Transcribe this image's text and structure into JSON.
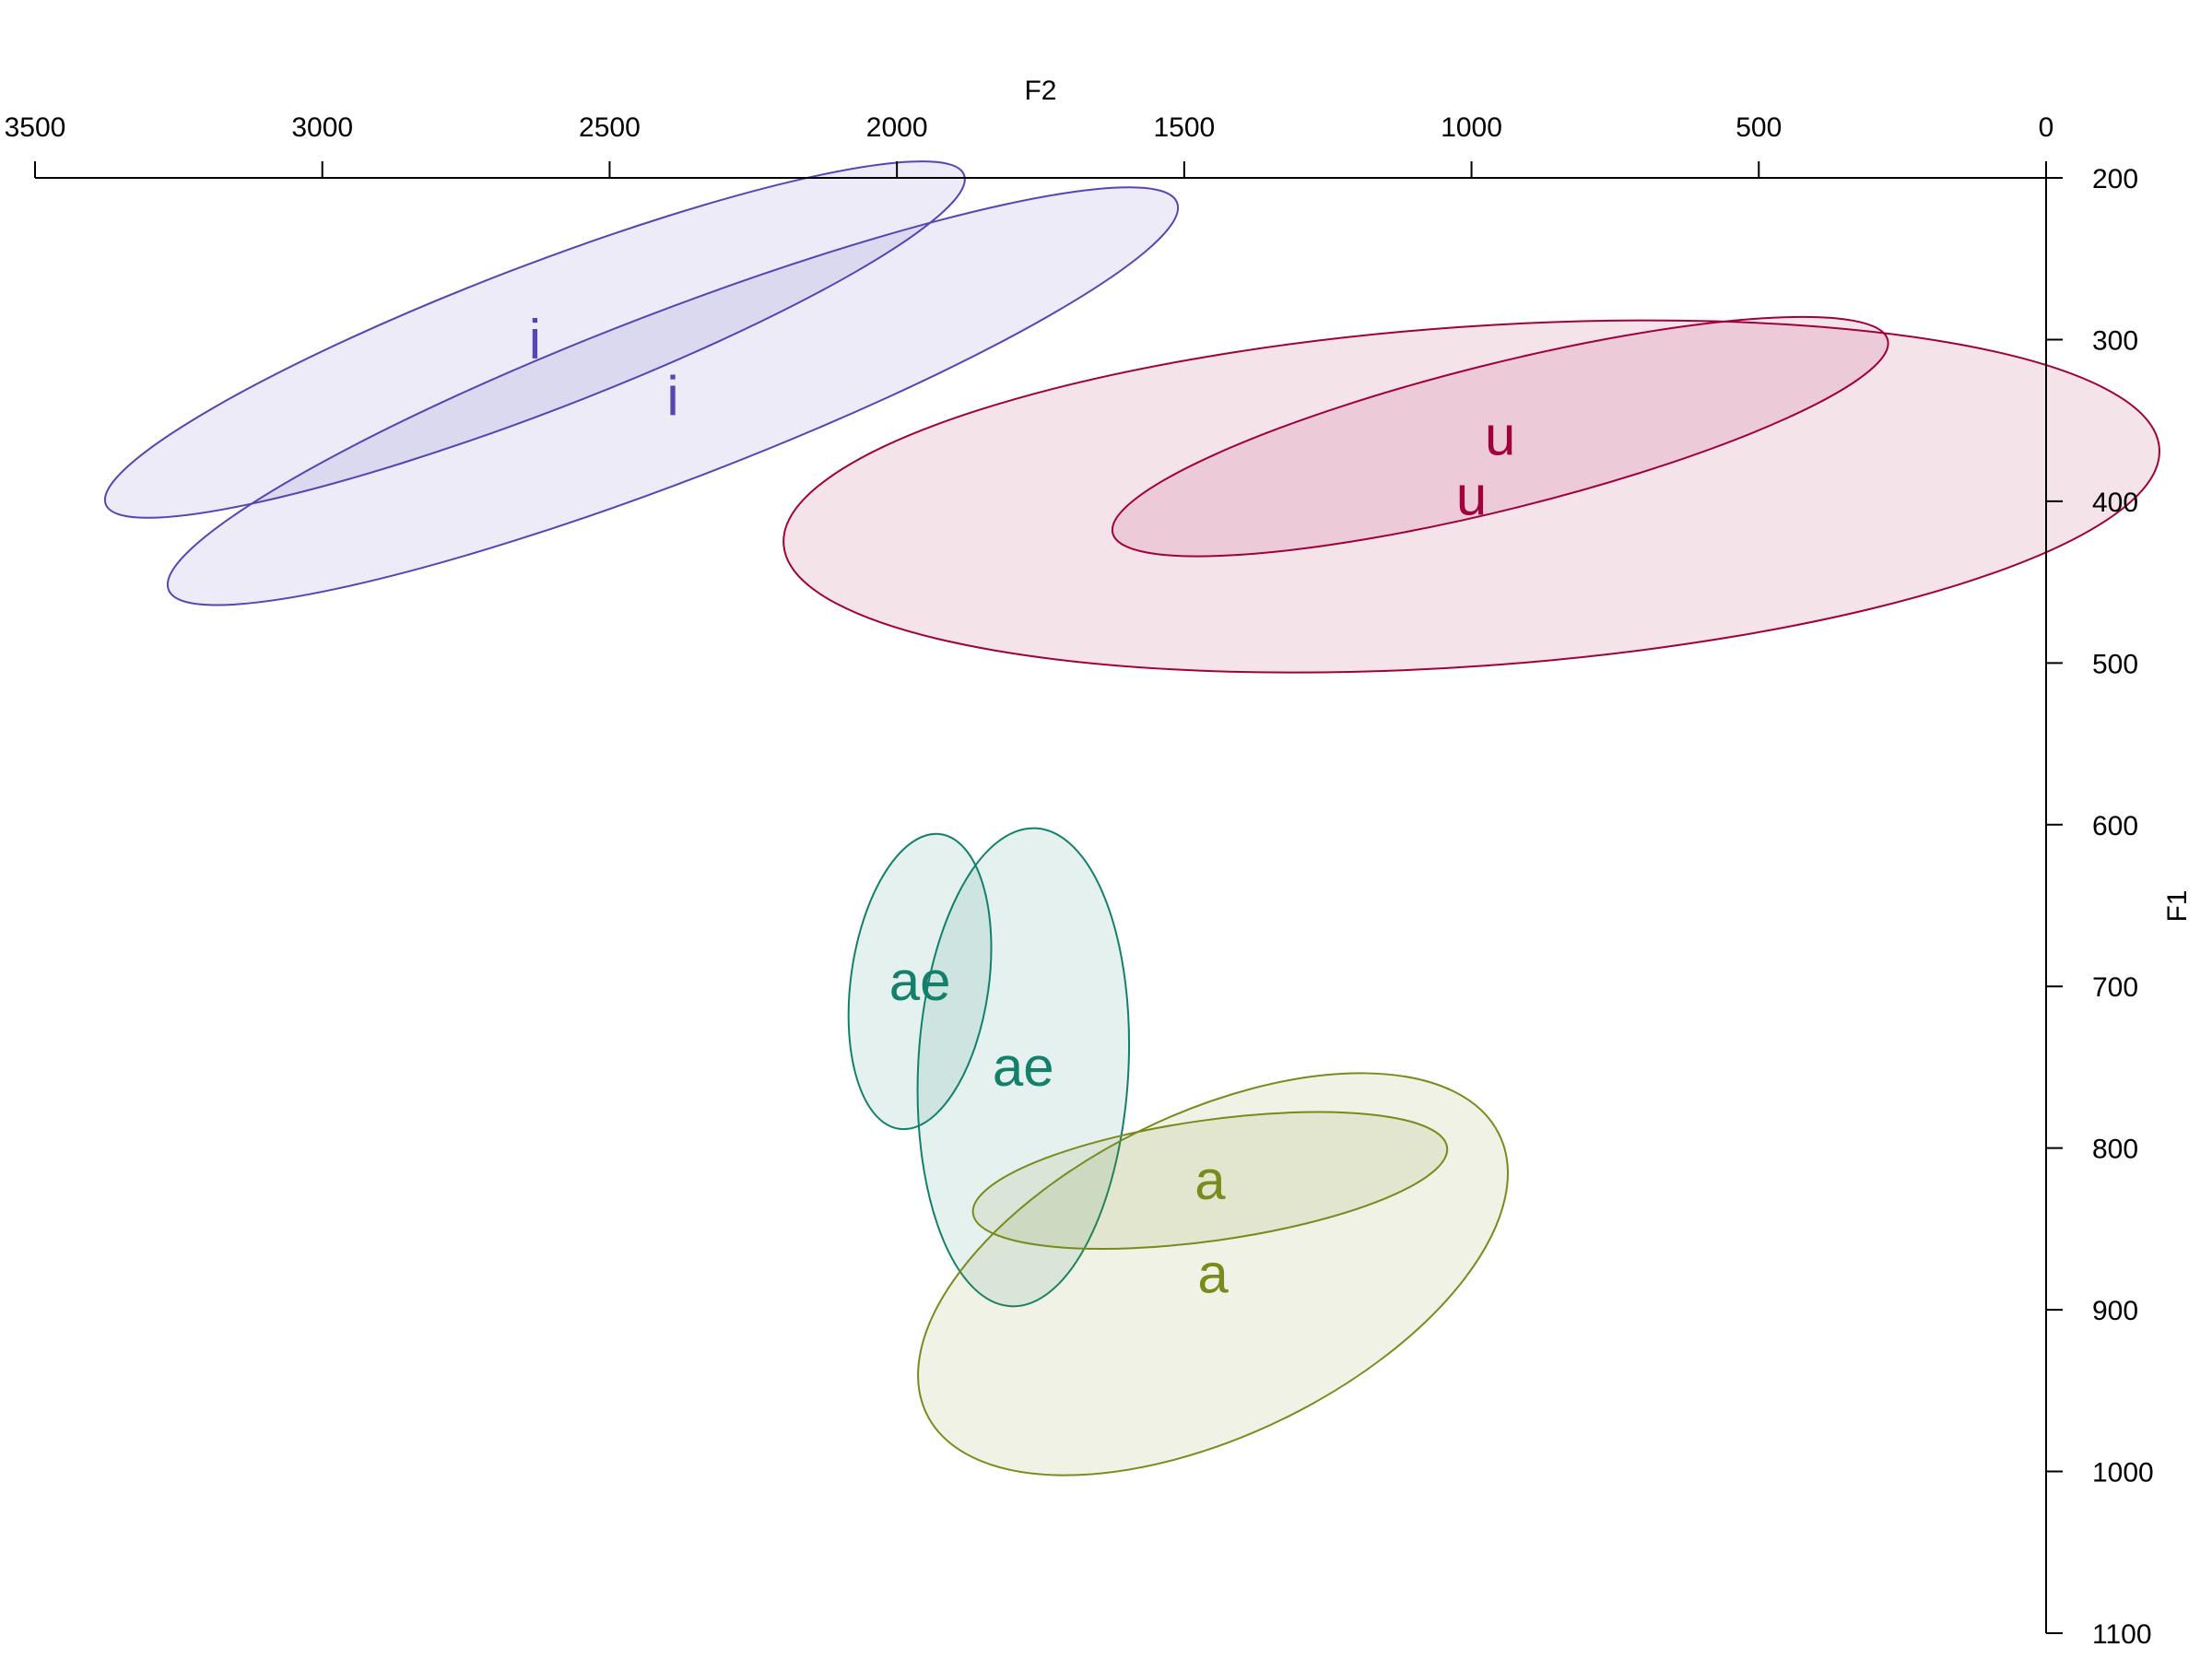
{
  "chart_data": {
    "type": "scatter",
    "title": "",
    "xlabel": "F2",
    "ylabel": "F1",
    "xlim": [
      3500,
      0
    ],
    "ylim": [
      200,
      1100
    ],
    "x_ticks": [
      3500,
      3000,
      2500,
      2000,
      1500,
      1000,
      500,
      0
    ],
    "y_ticks": [
      200,
      300,
      400,
      500,
      600,
      700,
      800,
      900,
      1000,
      1100
    ],
    "x_axis_position": "top",
    "y_axis_position": "right",
    "grid": false,
    "series": [
      {
        "name": "i",
        "color": "#5545B5",
        "ellipses": [
          {
            "label": "i",
            "center_f2": 2630,
            "center_f1": 300,
            "f2_radius": 800,
            "f1_radius": 45,
            "tilt_deg": 21
          },
          {
            "label": "i",
            "center_f2": 2390,
            "center_f1": 335,
            "f2_radius": 940,
            "f1_radius": 52,
            "tilt_deg": 21
          }
        ]
      },
      {
        "name": "u",
        "color": "#A0003C",
        "ellipses": [
          {
            "label": "u",
            "center_f2": 950,
            "center_f1": 360,
            "f2_radius": 695,
            "f1_radius": 45,
            "tilt_deg": 14
          },
          {
            "label": "u",
            "center_f2": 1000,
            "center_f1": 397,
            "f2_radius": 1200,
            "f1_radius": 105,
            "tilt_deg": 4
          }
        ]
      },
      {
        "name": "ae",
        "color": "#12806A",
        "ellipses": [
          {
            "label": "ae",
            "center_f2": 1960,
            "center_f1": 697,
            "f2_radius": 120,
            "f1_radius": 92,
            "tilt_deg": -8
          },
          {
            "label": "ae",
            "center_f2": 1780,
            "center_f1": 750,
            "f2_radius": 183,
            "f1_radius": 148,
            "tilt_deg": -3
          }
        ]
      },
      {
        "name": "a",
        "color": "#7A8A1C",
        "ellipses": [
          {
            "label": "a",
            "center_f2": 1455,
            "center_f1": 820,
            "f2_radius": 105,
            "f1_radius": 148,
            "tilt_deg": -82
          },
          {
            "label": "a",
            "center_f2": 1450,
            "center_f1": 878,
            "f2_radius": 280,
            "f1_radius": 197,
            "tilt_deg": -64
          }
        ]
      }
    ]
  }
}
